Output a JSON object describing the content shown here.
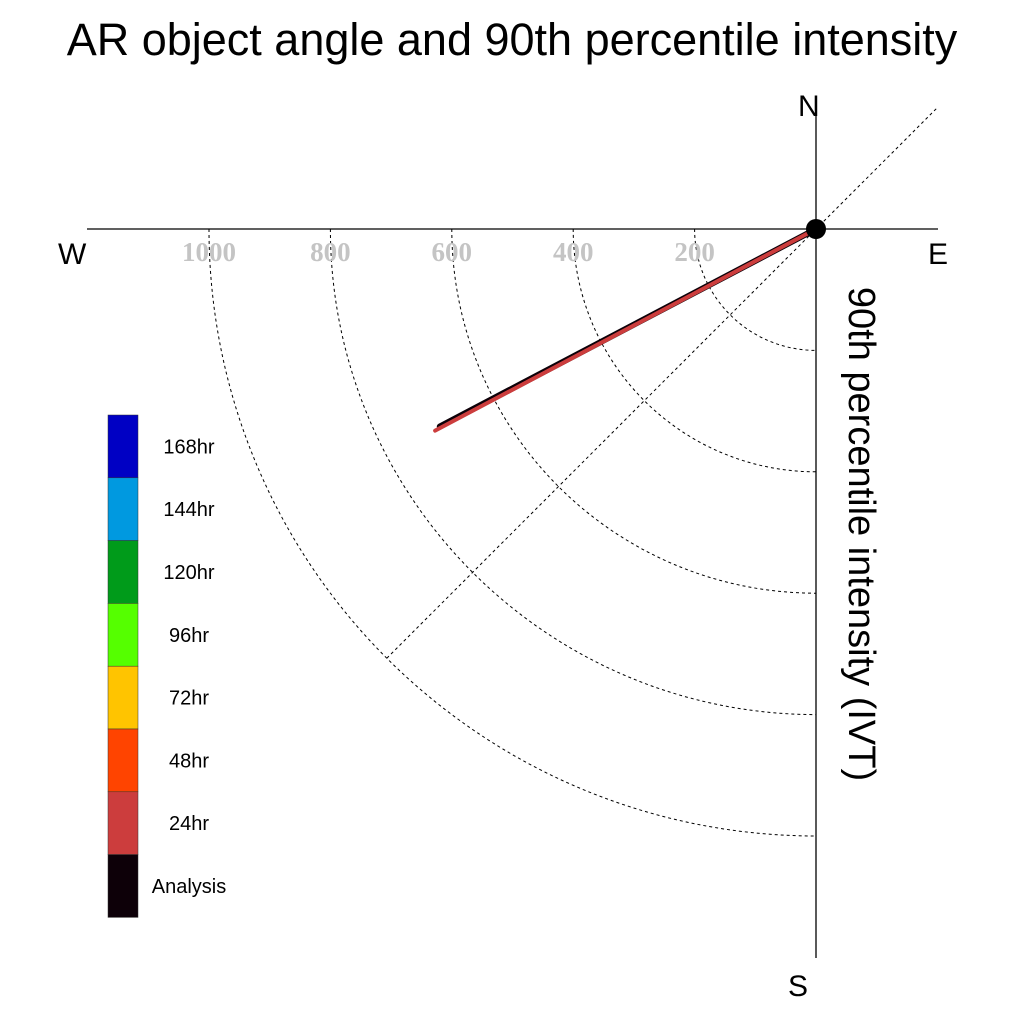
{
  "title": "AR object angle and 90th percentile intensity",
  "chart_data": {
    "type": "polar-quadrant",
    "title": "AR object angle and 90th percentile intensity",
    "radial_axis_label": "90th percentile intensity (IVT)",
    "directions": {
      "north": "N",
      "south": "S",
      "east": "E",
      "west": "W"
    },
    "radial_ticks": [
      200,
      400,
      600,
      800,
      1000
    ],
    "radial_range": [
      0,
      1000
    ],
    "grid": true,
    "legend_position": "left",
    "legend": [
      {
        "label": "168hr",
        "color": "#0000c4"
      },
      {
        "label": "144hr",
        "color": "#0099e0"
      },
      {
        "label": "120hr",
        "color": "#009b1a"
      },
      {
        "label": "96hr",
        "color": "#55ff00"
      },
      {
        "label": "72hr",
        "color": "#ffc400"
      },
      {
        "label": "48hr",
        "color": "#ff4400"
      },
      {
        "label": "24hr",
        "color": "#cc3d3d"
      },
      {
        "label": "Analysis",
        "color": "#0d0008"
      }
    ],
    "series": [
      {
        "name": "Analysis",
        "intensity": 700,
        "angle_deg_below_west": 27.7,
        "color": "#0d0008"
      },
      {
        "name": "24hr",
        "intensity": 710,
        "angle_deg_below_west": 27.9,
        "color": "#cc3d3d"
      }
    ]
  }
}
